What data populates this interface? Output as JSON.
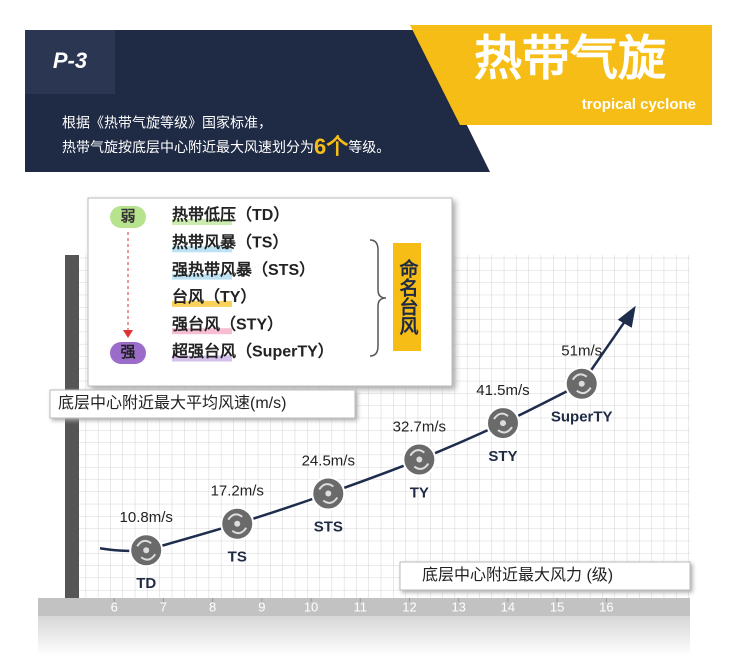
{
  "header": {
    "tab": "P-3",
    "title": "热带气旋",
    "subtitle": "tropical cyclone",
    "intro_line1": "根据《热带气旋等级》国家标准，",
    "intro_line2_before": "热带气旋按底层中心附近最大风速划分为",
    "intro_highlight": "6个",
    "intro_line2_after": "等级。"
  },
  "legend": {
    "weak": "弱",
    "strong": "强",
    "named": "命名台风",
    "levels": [
      "热带低压（TD）",
      "热带风暴（TS）",
      "强热带风暴（STS）",
      "台风（TY）",
      "强台风（STY）",
      "超强台风（SuperTY）"
    ]
  },
  "chart_data": {
    "type": "line",
    "y_label": "底层中心附近最大平均风速(m/s)",
    "x_label": "底层中心附近最大风力 (级)",
    "categories": [
      "TD",
      "TS",
      "STS",
      "TY",
      "STY",
      "SuperTY"
    ],
    "x": [
      6.65,
      8.5,
      10.35,
      12.2,
      13.9,
      15.5
    ],
    "values": [
      10.8,
      17.2,
      24.5,
      32.7,
      41.5,
      51
    ],
    "value_labels": [
      "10.8m/s",
      "17.2m/s",
      "24.5m/s",
      "32.7m/s",
      "41.5m/s",
      "51m/s"
    ],
    "xlim": [
      5,
      17.7
    ],
    "xticks": [
      6,
      7,
      8,
      9,
      10,
      11,
      12,
      13,
      14,
      15,
      16
    ],
    "ylim": [
      0,
      70
    ],
    "grid": true,
    "color": "#1f2d4d"
  }
}
